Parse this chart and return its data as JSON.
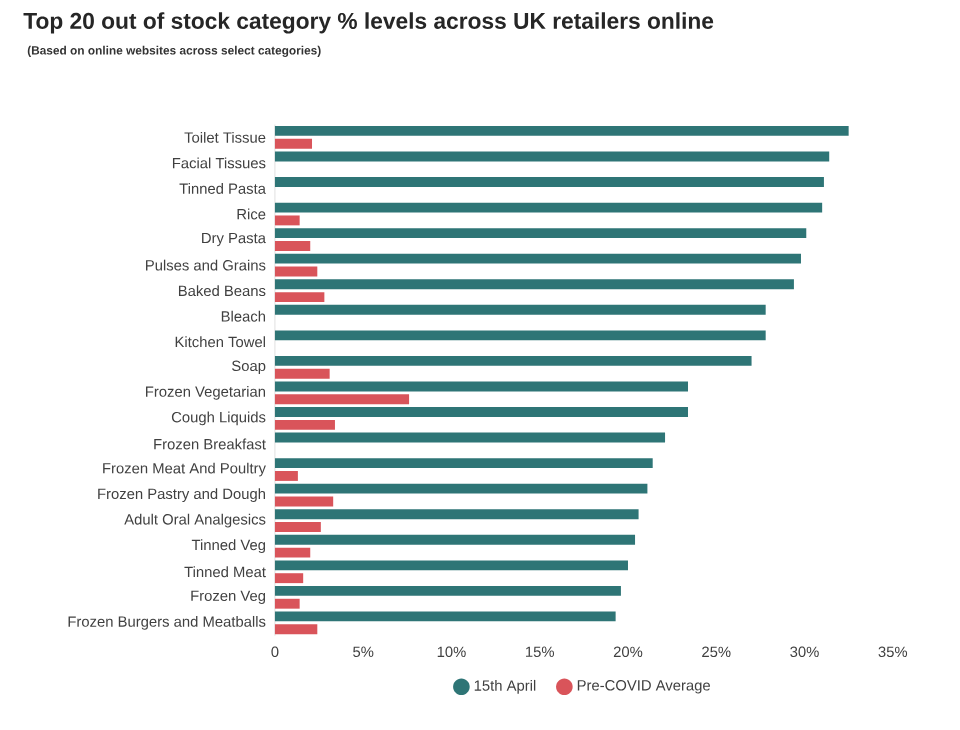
{
  "chart_data": {
    "type": "bar",
    "orientation": "horizontal",
    "title": "Top 20 out of stock category % levels across UK retailers online",
    "subtitle": "(Based on online websites across select categories)",
    "categories": [
      "Toilet Tissue",
      "Facial Tissues",
      "Tinned Pasta",
      "Rice",
      "Dry Pasta",
      "Pulses and Grains",
      "Baked Beans",
      "Bleach",
      "Kitchen Towel",
      "Soap",
      "Frozen Vegetarian",
      "Cough Liquids",
      "Frozen Breakfast",
      "Frozen Meat And Poultry",
      "Frozen Pastry and Dough",
      "Adult Oral Analgesics",
      "Tinned Veg",
      "Tinned Meat",
      "Frozen Veg",
      "Frozen Burgers and Meatballs"
    ],
    "series": [
      {
        "name": "15th April",
        "color": "#2e7576",
        "values": [
          32.5,
          31.4,
          31.1,
          31.0,
          30.1,
          29.8,
          29.4,
          27.8,
          27.8,
          27.0,
          23.4,
          23.4,
          22.1,
          21.4,
          21.1,
          20.6,
          20.4,
          20.0,
          19.6,
          19.3
        ]
      },
      {
        "name": "Pre-COVID Average",
        "color": "#d9545a",
        "values": [
          2.1,
          null,
          null,
          1.4,
          2.0,
          2.4,
          2.8,
          null,
          null,
          3.1,
          7.6,
          3.4,
          null,
          1.3,
          3.3,
          2.6,
          2.0,
          1.6,
          1.4,
          2.4
        ]
      }
    ],
    "xlim": [
      0,
      35
    ],
    "xticks": [
      0,
      {
        "value": 5,
        "label": "5%"
      },
      {
        "value": 10,
        "label": "10%"
      },
      {
        "value": 15,
        "label": "15%"
      },
      {
        "value": 20,
        "label": "20%"
      },
      {
        "value": 25,
        "label": "25%"
      },
      {
        "value": 30,
        "label": "30%"
      },
      {
        "value": 35,
        "label": "35%"
      }
    ],
    "grid": false,
    "legend": "bottom"
  }
}
